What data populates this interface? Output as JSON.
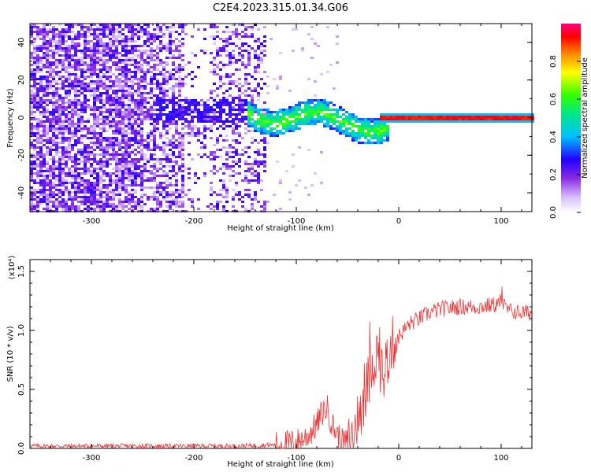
{
  "title": "C2E4.2023.315.01.34.G06",
  "colorbar": {
    "label": "Normalized spectral amplitude",
    "ticks": [
      "0.0",
      "0.2",
      "0.4",
      "0.6",
      "0.8"
    ],
    "tick_values": [
      0.0,
      0.2,
      0.4,
      0.6,
      0.8
    ],
    "range": [
      0,
      1
    ]
  },
  "chart_data": [
    {
      "type": "heatmap",
      "xlabel": "Height of straight line (km)",
      "ylabel": "Frequency (Hz)",
      "xlim": [
        -360,
        130
      ],
      "ylim": [
        -50,
        50
      ],
      "xticks": [
        -300,
        -200,
        -100,
        0,
        100
      ],
      "xtick_labels": [
        "-300",
        "-200",
        "-100",
        "0",
        "100"
      ],
      "yticks": [
        -40,
        -20,
        0,
        20,
        40
      ],
      "ytick_labels": [
        "-40",
        "-20",
        "0",
        "20",
        "40"
      ],
      "description_of_pattern": {
        "noise_region_x": [
          -360,
          -130
        ],
        "carrier_line_start_x": -10,
        "carrier_frequency_hz": 0,
        "carrier_amplitude": 0.9
      }
    },
    {
      "type": "line",
      "xlabel": "Height of straight line (km)",
      "ylabel": "SNR (10 * v/v)",
      "y_multiplier": "(x10⁴)",
      "xlim": [
        -360,
        130
      ],
      "ylim": [
        0,
        1.6
      ],
      "xticks": [
        -300,
        -200,
        -100,
        0,
        100
      ],
      "xtick_labels": [
        "-300",
        "-200",
        "-100",
        "0",
        "100"
      ],
      "yticks": [
        0,
        0.5,
        1.0,
        1.5
      ],
      "ytick_labels": [
        "0.0",
        "0.5",
        "1.0",
        "1.5"
      ],
      "color": "#ee3333",
      "series": [
        {
          "x": [
            -360,
            -300,
            -250,
            -200,
            -160,
            -120,
            -100,
            -90,
            -80,
            -75,
            -70,
            -65,
            -60,
            -55,
            -50,
            -45,
            -40,
            -35,
            -30,
            -25,
            -20,
            -15,
            -10,
            -5,
            0,
            10,
            20,
            30,
            40,
            60,
            80,
            95,
            100,
            105,
            110,
            120,
            130
          ],
          "y": [
            0.02,
            0.02,
            0.02,
            0.02,
            0.02,
            0.03,
            0.05,
            0.1,
            0.2,
            0.3,
            0.35,
            0.2,
            0.12,
            0.05,
            0.05,
            0.1,
            0.25,
            0.4,
            0.55,
            0.75,
            0.8,
            0.6,
            0.8,
            0.9,
            0.95,
            1.05,
            1.1,
            1.15,
            1.18,
            1.2,
            1.2,
            1.22,
            1.25,
            1.18,
            1.16,
            1.15,
            1.15
          ]
        }
      ]
    }
  ]
}
